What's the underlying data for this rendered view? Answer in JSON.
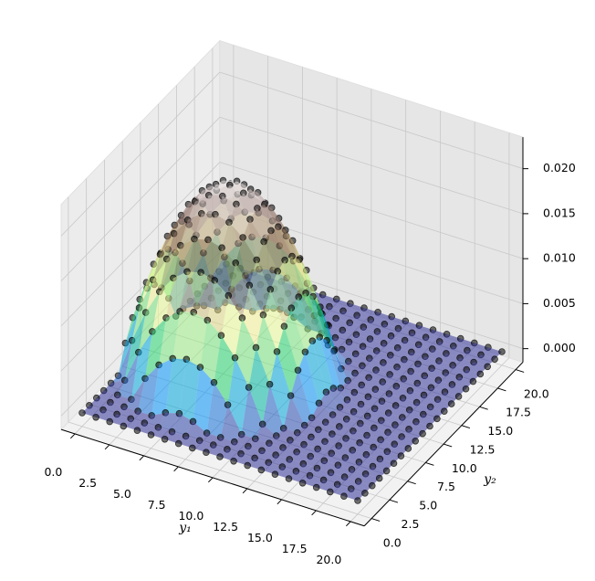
{
  "chart_data": {
    "type": "surface3d",
    "x": [
      0,
      1,
      2,
      3,
      4,
      5,
      6,
      7,
      8,
      9,
      10,
      11,
      12,
      13,
      14,
      15,
      16,
      17,
      18,
      19,
      20
    ],
    "y": [
      0,
      1,
      2,
      3,
      4,
      5,
      6,
      7,
      8,
      9,
      10,
      11,
      12,
      13,
      14,
      15,
      16,
      17,
      18,
      19,
      20
    ],
    "z": [
      [
        0,
        0,
        0,
        0,
        0,
        0,
        0,
        0,
        0,
        0,
        0,
        0,
        0,
        0,
        0,
        0,
        0,
        0,
        0,
        0,
        0
      ],
      [
        0,
        0,
        0,
        0,
        0,
        0,
        0,
        0,
        0,
        0,
        0,
        0,
        0,
        0,
        0,
        0,
        0,
        0,
        0,
        0,
        0
      ],
      [
        0,
        0,
        0,
        0,
        0,
        0.0008,
        0.0012,
        0.0008,
        0,
        0,
        0,
        0,
        0,
        0,
        0,
        0,
        0,
        0,
        0,
        0,
        0
      ],
      [
        0,
        0,
        0,
        0.0028,
        0.0048,
        0.006,
        0.0064,
        0.006,
        0.0048,
        0.0028,
        0,
        0,
        0,
        0,
        0,
        0,
        0,
        0,
        0,
        0,
        0
      ],
      [
        0,
        0.0008,
        0.0044,
        0.0072,
        0.0092,
        0.0104,
        0.0108,
        0.0104,
        0.0092,
        0.0072,
        0.0044,
        0.0008,
        0,
        0,
        0,
        0,
        0,
        0,
        0,
        0,
        0
      ],
      [
        0,
        0.0044,
        0.008,
        0.0108,
        0.0128,
        0.014,
        0.0144,
        0.014,
        0.0128,
        0.0108,
        0.008,
        0.0044,
        0,
        0,
        0,
        0,
        0,
        0,
        0,
        0,
        0
      ],
      [
        0.0028,
        0.0072,
        0.0108,
        0.0136,
        0.0156,
        0.0168,
        0.0172,
        0.0168,
        0.0156,
        0.0136,
        0.0108,
        0.0072,
        0.0028,
        0,
        0,
        0,
        0,
        0,
        0,
        0,
        0
      ],
      [
        0.0048,
        0.0092,
        0.0128,
        0.0156,
        0.0176,
        0.0188,
        0.0192,
        0.0188,
        0.0176,
        0.0156,
        0.0128,
        0.0092,
        0.0048,
        0,
        0,
        0,
        0,
        0,
        0,
        0,
        0
      ],
      [
        0.006,
        0.0104,
        0.014,
        0.0168,
        0.0188,
        0.02,
        0.0204,
        0.02,
        0.0188,
        0.0168,
        0.014,
        0.0104,
        0.006,
        0.0008,
        0,
        0,
        0,
        0,
        0,
        0,
        0
      ],
      [
        0.0064,
        0.0108,
        0.0144,
        0.0172,
        0.0192,
        0.0204,
        0.0208,
        0.0204,
        0.0192,
        0.0172,
        0.0144,
        0.0108,
        0.0064,
        0.0012,
        0,
        0,
        0,
        0,
        0,
        0,
        0
      ],
      [
        0.006,
        0.0104,
        0.014,
        0.0168,
        0.0188,
        0.02,
        0.0204,
        0.02,
        0.0188,
        0.0168,
        0.014,
        0.0104,
        0.006,
        0.0008,
        0,
        0,
        0,
        0,
        0,
        0,
        0
      ],
      [
        0.0048,
        0.0092,
        0.0128,
        0.0156,
        0.0176,
        0.0188,
        0.0192,
        0.0188,
        0.0176,
        0.0156,
        0.0128,
        0.0092,
        0.0048,
        0,
        0,
        0,
        0,
        0,
        0,
        0,
        0
      ],
      [
        0.0028,
        0.0072,
        0.0108,
        0.0136,
        0.0156,
        0.0168,
        0.0172,
        0.0168,
        0.0156,
        0.0136,
        0.0108,
        0.0072,
        0.0028,
        0,
        0,
        0,
        0,
        0,
        0,
        0,
        0
      ],
      [
        0,
        0.0044,
        0.008,
        0.0108,
        0.0128,
        0.014,
        0.0144,
        0.014,
        0.0128,
        0.0108,
        0.008,
        0.0044,
        0,
        0,
        0,
        0,
        0,
        0,
        0,
        0,
        0
      ],
      [
        0,
        0.0008,
        0.0044,
        0.0072,
        0.0092,
        0.0104,
        0.0108,
        0.0104,
        0.0092,
        0.0072,
        0.0044,
        0.0008,
        0,
        0,
        0,
        0,
        0,
        0,
        0,
        0,
        0
      ],
      [
        0,
        0,
        0,
        0.0028,
        0.0048,
        0.006,
        0.0064,
        0.006,
        0.0048,
        0.0028,
        0,
        0,
        0,
        0,
        0,
        0,
        0,
        0,
        0,
        0,
        0
      ],
      [
        0,
        0,
        0,
        0,
        0,
        0.0008,
        0.0012,
        0.0008,
        0,
        0,
        0,
        0,
        0,
        0,
        0,
        0,
        0,
        0,
        0,
        0,
        0
      ],
      [
        0,
        0,
        0,
        0,
        0,
        0,
        0,
        0,
        0,
        0,
        0,
        0,
        0,
        0,
        0,
        0,
        0,
        0,
        0,
        0,
        0
      ],
      [
        0,
        0,
        0,
        0,
        0,
        0,
        0,
        0,
        0,
        0,
        0,
        0,
        0,
        0,
        0,
        0,
        0,
        0,
        0,
        0,
        0
      ],
      [
        0,
        0,
        0,
        0,
        0,
        0,
        0,
        0,
        0,
        0,
        0,
        0,
        0,
        0,
        0,
        0,
        0,
        0,
        0,
        0,
        0
      ],
      [
        0,
        0,
        0,
        0,
        0,
        0,
        0,
        0,
        0,
        0,
        0,
        0,
        0,
        0,
        0,
        0,
        0,
        0,
        0,
        0,
        0
      ]
    ],
    "colormap": "terrain",
    "alpha": 0.55,
    "point_color": "#000000",
    "xlabel": "y₁",
    "ylabel": "y₂",
    "xlim": [
      -1,
      21
    ],
    "ylim": [
      -1,
      21
    ],
    "zlim": [
      -0.0015,
      0.0235
    ],
    "xticks": [
      {
        "value": 0,
        "label": "0.0"
      },
      2.5,
      {
        "value": 5,
        "label": "5.0"
      },
      7.5,
      {
        "value": 10,
        "label": "10.0"
      },
      12.5,
      {
        "value": 15,
        "label": "15.0"
      },
      17.5,
      {
        "value": 20,
        "label": "20.0"
      }
    ],
    "yticks": [
      {
        "value": 0,
        "label": "0.0"
      },
      2.5,
      {
        "value": 5,
        "label": "5.0"
      },
      7.5,
      {
        "value": 10,
        "label": "10.0"
      },
      12.5,
      {
        "value": 15,
        "label": "15.0"
      },
      17.5,
      {
        "value": 20,
        "label": "20.0"
      }
    ],
    "zticks": [
      {
        "value": 0,
        "label": "0.000"
      },
      0.005,
      {
        "value": 0.01,
        "label": "0.010"
      },
      0.015,
      {
        "value": 0.02,
        "label": "0.020"
      }
    ],
    "grid": true
  }
}
